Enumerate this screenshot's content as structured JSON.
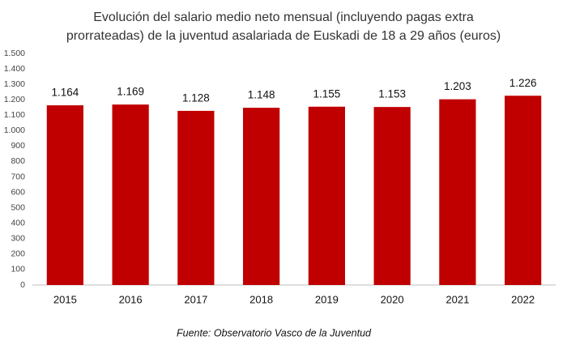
{
  "chart_data": {
    "type": "bar",
    "title": [
      "Evolución del salario medio neto mensual (incluyendo pagas extra",
      "prorrateadas) de la juventud asalariada de Euskadi de 18 a 29 años (euros)"
    ],
    "categories": [
      "2015",
      "2016",
      "2017",
      "2018",
      "2019",
      "2020",
      "2021",
      "2022"
    ],
    "values": [
      1164,
      1169,
      1128,
      1148,
      1155,
      1153,
      1203,
      1226
    ],
    "value_labels": [
      "1.164",
      "1.169",
      "1.128",
      "1.148",
      "1.155",
      "1.153",
      "1.203",
      "1.226"
    ],
    "color": "#c00000",
    "ylim": [
      0,
      1500
    ],
    "yticks": [
      0,
      100,
      200,
      300,
      400,
      500,
      600,
      700,
      800,
      900,
      {
        "value": 1000,
        "label": "1.000"
      },
      {
        "value": 1100,
        "label": "1.100"
      },
      {
        "value": 1200,
        "label": "1.200"
      },
      {
        "value": 1300,
        "label": "1.300"
      },
      {
        "value": 1400,
        "label": "1.400"
      },
      {
        "value": 1500,
        "label": "1.500"
      }
    ],
    "grid": false,
    "source": "Fuente: Observatorio Vasco de la Juventud"
  }
}
